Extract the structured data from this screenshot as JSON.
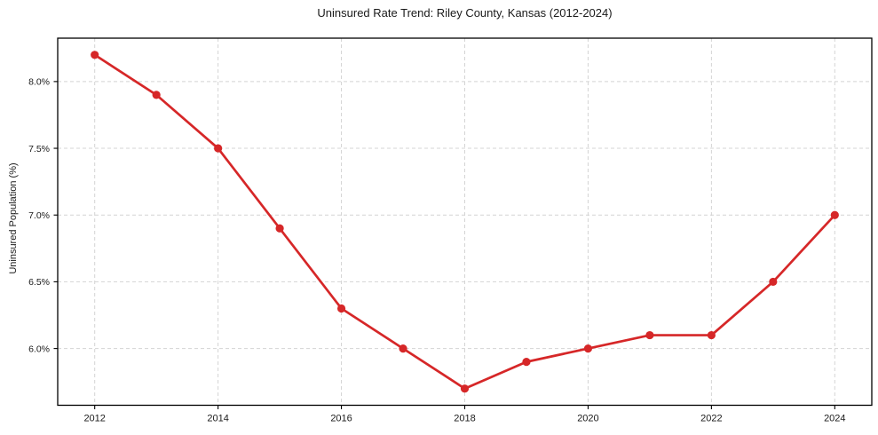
{
  "chart": {
    "title": "Uninsured Rate Trend: Riley County, Kansas (2012-2024)",
    "ylabel": "Uninsured Population (%)"
  },
  "chart_data": {
    "type": "line",
    "title": "Uninsured Rate Trend: Riley County, Kansas (2012-2024)",
    "xlabel": "",
    "ylabel": "Uninsured Population (%)",
    "x": [
      2012,
      2013,
      2014,
      2015,
      2016,
      2017,
      2018,
      2019,
      2020,
      2021,
      2022,
      2023,
      2024
    ],
    "values": [
      8.2,
      7.9,
      7.5,
      6.9,
      6.3,
      6.0,
      5.7,
      5.9,
      6.0,
      6.1,
      6.1,
      6.5,
      7.0
    ],
    "xlim": [
      2011.4,
      2024.6
    ],
    "ylim": [
      5.575,
      8.325
    ],
    "x_ticks": [
      2012,
      2014,
      2016,
      2018,
      2020,
      2022,
      2024
    ],
    "x_tick_labels": [
      "2012",
      "2014",
      "2016",
      "2018",
      "2020",
      "2022",
      "2024"
    ],
    "y_ticks": [
      6.0,
      6.5,
      7.0,
      7.5,
      8.0
    ],
    "y_tick_labels": [
      "6.0%",
      "6.5%",
      "7.0%",
      "7.5%",
      "8.0%"
    ],
    "grid": true,
    "grid_style": "dashed",
    "legend": false,
    "line_color": "#d62728",
    "grid_color": "#d4d4d4",
    "axis_color": "#000000",
    "text_color": "#1a1a1a",
    "background_color": "#ffffff",
    "marker": "o"
  }
}
